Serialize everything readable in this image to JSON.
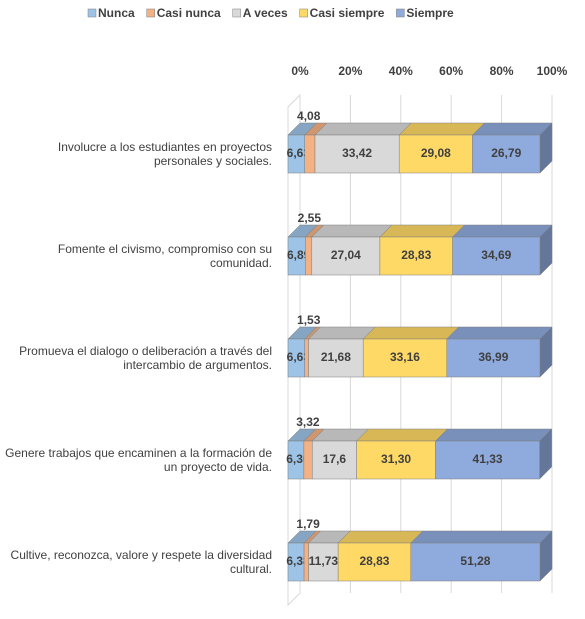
{
  "chart_data": {
    "type": "stacked-bar-3d",
    "categories": [
      "Involucre a los estudiantes en proyectos personales y sociales.",
      "Fomente el civismo, compromiso con su comunidad.",
      "Promueva el dialogo o deliberación a través del intercambio de argumentos.",
      "Genere trabajos que encaminen a la formación de un proyecto de vida.",
      "Cultive, reconozca, valore y respete la diversidad cultural."
    ],
    "series": [
      {
        "name": "Nunca",
        "color": "#9dc3e6",
        "values": [
          6.63,
          6.89,
          6.63,
          6.3,
          6.38
        ],
        "value_labels": [
          "6,63",
          "6,89",
          "6,63",
          "6,30",
          "6,38"
        ]
      },
      {
        "name": "Casi nunca",
        "color": "#f4b183",
        "values": [
          4.08,
          2.55,
          1.53,
          3.32,
          1.79
        ],
        "value_labels": [
          "4,08",
          "2,55",
          "1,53",
          "3,32",
          "1,79"
        ]
      },
      {
        "name": "A veces",
        "color": "#d9d9d9",
        "values": [
          33.42,
          27.04,
          21.68,
          17.6,
          11.73
        ],
        "value_labels": [
          "33,42",
          "27,04",
          "21,68",
          "17,6",
          "11,73"
        ]
      },
      {
        "name": "Casi siempre",
        "color": "#ffd966",
        "values": [
          29.08,
          28.83,
          33.16,
          31.3,
          28.83
        ],
        "value_labels": [
          "29,08",
          "28,83",
          "33,16",
          "31,30",
          "28,83"
        ]
      },
      {
        "name": "Siempre",
        "color": "#8faadc",
        "values": [
          26.79,
          34.69,
          36.99,
          41.33,
          51.28
        ],
        "value_labels": [
          "26,79",
          "34,69",
          "36,99",
          "41,33",
          "51,28"
        ]
      }
    ],
    "xlim": [
      0,
      100
    ],
    "xticks": [
      {
        "value": 0,
        "label": "0%"
      },
      {
        "value": 20,
        "label": "20%"
      },
      {
        "value": 40,
        "label": "40%"
      },
      {
        "value": 60,
        "label": "60%"
      },
      {
        "value": 80,
        "label": "80%"
      },
      {
        "value": 100,
        "label": "100%"
      }
    ],
    "legend": "top",
    "grid": true
  }
}
